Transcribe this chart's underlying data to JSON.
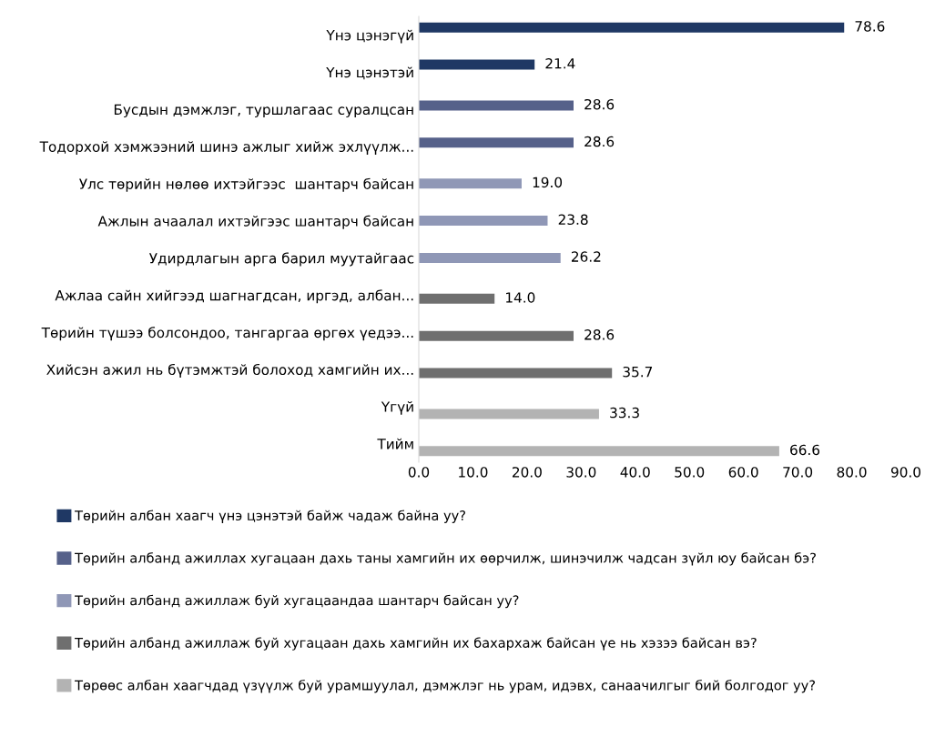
{
  "chart_data": {
    "type": "bar",
    "orientation": "horizontal",
    "categories": [
      "Үнэ цэнэгүй",
      "Үнэ цэнэтэй",
      "Бусдын дэмжлэг, туршлагаас суралцсан",
      "Тодорхой хэмжээний шинэ ажлыг хийж эхлүүлж...",
      "Улс төрийн нөлөө ихтэйгээс  шантарч байсан",
      "Ажлын ачаалал ихтэйгээс шантарч байсан",
      "Удирдлагын арга барил муутайгаас",
      "Ажлаа сайн хийгээд шагнагдсан, иргэд, албан...",
      "Төрийн түшээ болсондоо, тангаргаа өргөх үедээ...",
      "Хийсэн ажил нь бүтэмжтэй болоход хамгийн их...",
      "Үгүй",
      "Тийм"
    ],
    "series": [
      {
        "name": "Төрийн албан хаагч үнэ цэнэтэй байж чадаж байна уу?",
        "color": "#1f3864",
        "values": [
          78.6,
          21.4,
          null,
          null,
          null,
          null,
          null,
          null,
          null,
          null,
          null,
          null
        ],
        "value_labels": [
          "78.6",
          "21.4",
          null,
          null,
          null,
          null,
          null,
          null,
          null,
          null,
          null,
          null
        ]
      },
      {
        "name": "Төрийн албанд ажиллах хугацаан дахь таны хамгийн их өөрчилж, шинэчилж чадсан зүйл юу байсан бэ?",
        "color": "#56618a",
        "values": [
          null,
          null,
          28.6,
          28.6,
          null,
          null,
          null,
          null,
          null,
          null,
          null,
          null
        ],
        "value_labels": [
          null,
          null,
          "28.6",
          "28.6",
          null,
          null,
          null,
          null,
          null,
          null,
          null,
          null
        ]
      },
      {
        "name": "Төрийн албанд ажиллаж буй хугацаандаа шантарч байсан уу?",
        "color": "#8f97b6",
        "values": [
          null,
          null,
          null,
          null,
          19.0,
          23.8,
          26.2,
          null,
          null,
          null,
          null,
          null
        ],
        "value_labels": [
          null,
          null,
          null,
          null,
          "19.0",
          "23.8",
          "26.2",
          null,
          null,
          null,
          null,
          null
        ]
      },
      {
        "name": "Төрийн албанд ажиллаж буй хугацаан дахь хамгийн их бахархаж байсан үе нь хэзээ байсан вэ?",
        "color": "#6f6f6f",
        "values": [
          null,
          null,
          null,
          null,
          null,
          null,
          null,
          14.0,
          28.6,
          35.7,
          null,
          null
        ],
        "value_labels": [
          null,
          null,
          null,
          null,
          null,
          null,
          null,
          "14.0",
          "28.6",
          "35.7",
          null,
          null
        ]
      },
      {
        "name": "Төрөөс албан хаагчдад үзүүлж буй урамшуулал, дэмжлэг нь урам, идэвх, санаачилгыг бий болгодог уу?",
        "color": "#b3b3b3",
        "values": [
          null,
          null,
          null,
          null,
          null,
          null,
          null,
          null,
          null,
          null,
          33.3,
          66.6
        ],
        "value_labels": [
          null,
          null,
          null,
          null,
          null,
          null,
          null,
          null,
          null,
          null,
          "33.3",
          "66.6"
        ]
      }
    ],
    "xlim": [
      0,
      90
    ],
    "xticks": [
      {
        "value": 0,
        "label": "0.0"
      },
      {
        "value": 10,
        "label": "10.0"
      },
      {
        "value": 20,
        "label": "20.0"
      },
      {
        "value": 30,
        "label": "30.0"
      },
      {
        "value": 40,
        "label": "40.0"
      },
      {
        "value": 50,
        "label": "50.0"
      },
      {
        "value": 60,
        "label": "60.0"
      },
      {
        "value": 70,
        "label": "70.0"
      },
      {
        "value": 80,
        "label": "80.0"
      },
      {
        "value": 90,
        "label": "90.0"
      }
    ],
    "grid": false,
    "legend": "bottom"
  }
}
